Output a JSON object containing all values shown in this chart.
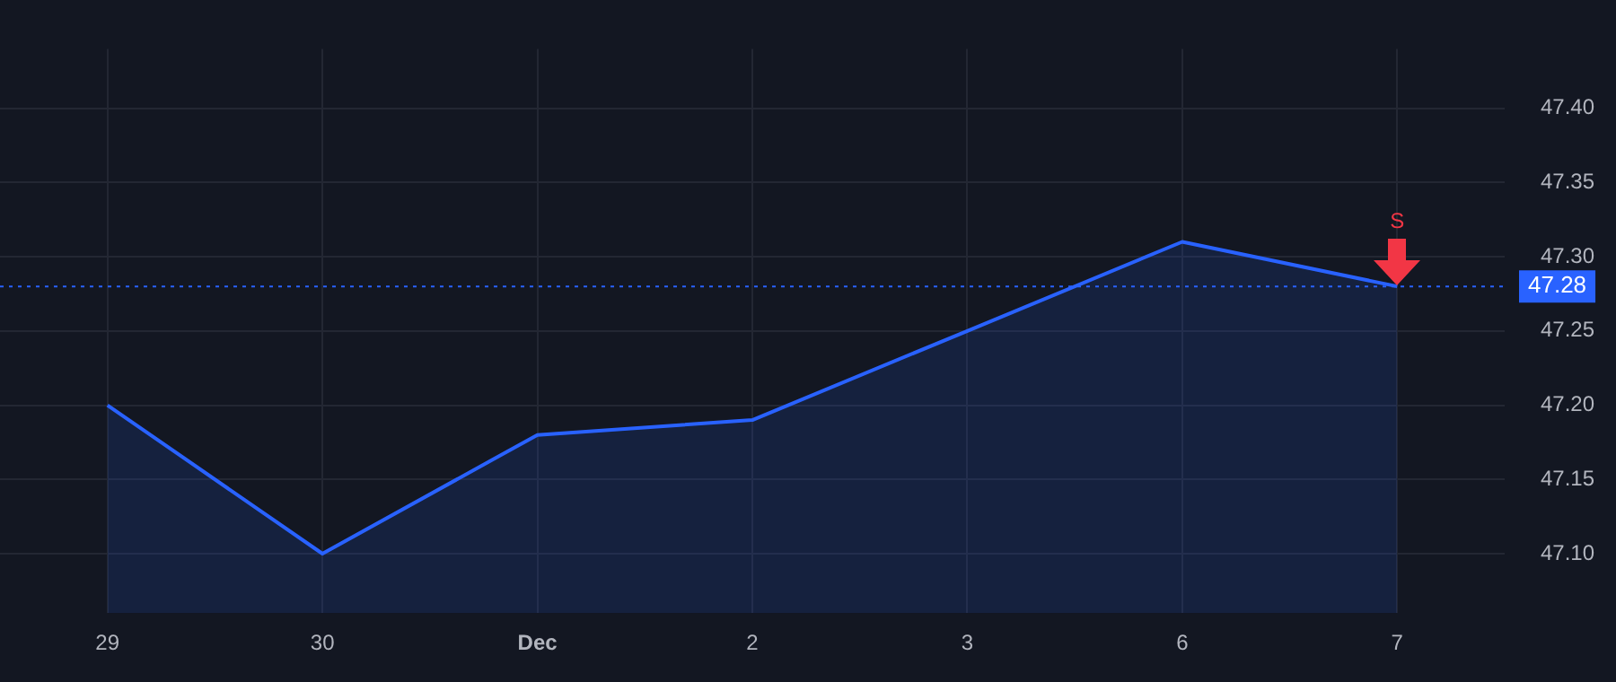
{
  "chart_data": {
    "type": "area",
    "categories": [
      "29",
      "30",
      "Dec",
      "2",
      "3",
      "6",
      "7"
    ],
    "series": [
      {
        "color": "#2962ff",
        "values": [
          47.2,
          47.1,
          47.18,
          47.19,
          47.25,
          47.31,
          47.28
        ]
      }
    ],
    "ylim": [
      47.06,
      47.44
    ],
    "yticks": [
      {
        "value": 47.1,
        "label": "47.10"
      },
      {
        "value": 47.15,
        "label": "47.15"
      },
      {
        "value": 47.2,
        "label": "47.20"
      },
      {
        "value": 47.25,
        "label": "47.25"
      },
      {
        "value": 47.3,
        "label": "47.30"
      },
      {
        "value": 47.35,
        "label": "47.35"
      },
      {
        "value": 47.4,
        "label": "47.40"
      }
    ],
    "grid": true,
    "legend": false,
    "marker": "none",
    "ref_lines": [
      {
        "axis": "y",
        "value": 47.28,
        "label": "47.28",
        "color": "#2962ff",
        "line_style": "dotted"
      }
    ],
    "annotations": [
      {
        "text": "S",
        "x": "7",
        "y": 47.28
      }
    ]
  }
}
